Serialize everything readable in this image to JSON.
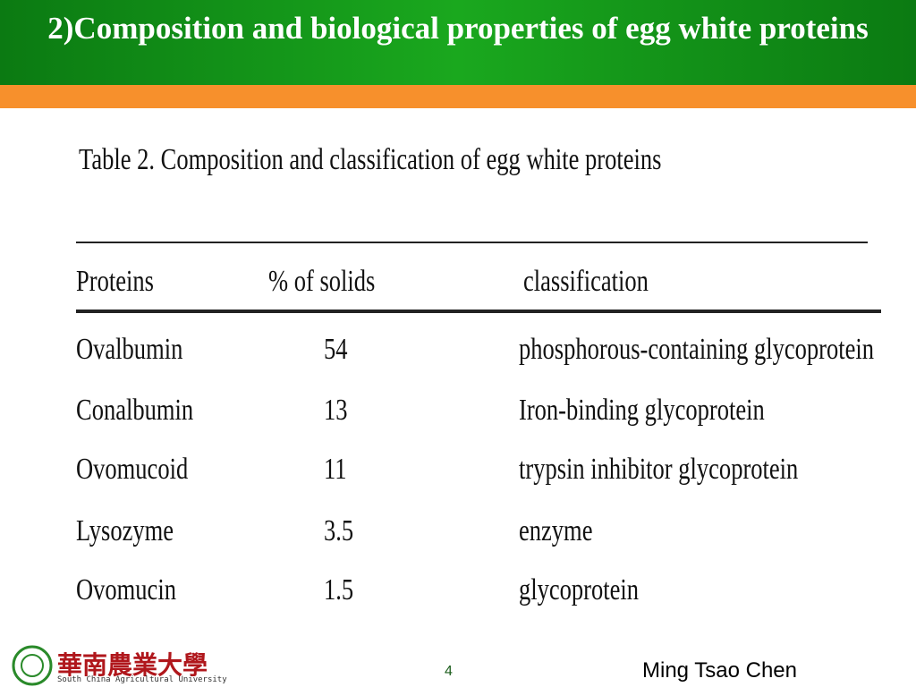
{
  "header": {
    "title": "2)Composition and biological properties of egg white proteins"
  },
  "table": {
    "title": "Table 2. Composition and classification of egg white proteins",
    "columns": [
      "Proteins",
      "% of solids",
      "classification"
    ],
    "rows": [
      [
        "Ovalbumin",
        "54",
        "phosphorous-containing glycoprotein"
      ],
      [
        "Conalbumin",
        "13",
        "Iron-binding glycoprotein"
      ],
      [
        "Ovomucoid",
        "11",
        "trypsin inhibitor glycoprotein"
      ],
      [
        "Lysozyme",
        "3.5",
        "enzyme"
      ],
      [
        "Ovomucin",
        "1.5",
        "glycoprotein"
      ]
    ]
  },
  "footer": {
    "logo_name": "華南農業大學",
    "logo_subtitle": "South China Agricultural University",
    "page_number": "4",
    "author": "Ming Tsao Chen"
  }
}
